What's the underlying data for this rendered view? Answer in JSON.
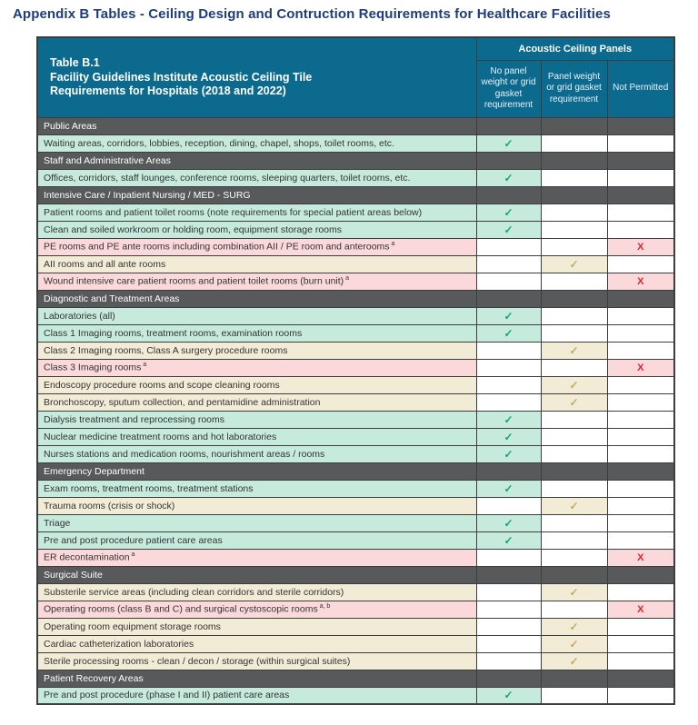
{
  "page_title": "Appendix B Tables - Ceiling Design and Contruction Requirements for Healthcare Facilities",
  "table": {
    "label": "Table B.1",
    "title_line1": "Facility Guidelines Institute Acoustic Ceiling Tile",
    "title_line2": "Requirements for Hospitals (2018 and 2022)",
    "group_header": "Acoustic Ceiling Panels",
    "columns": [
      "No panel weight or grid gasket requirement",
      "Panel weight or grid gasket requirement",
      "Not Permitted"
    ],
    "check_glyph": "✓",
    "x_glyph": "X"
  },
  "colors": {
    "title_blue": "#1e3d7c",
    "header_teal": "#0d6a8f",
    "section_gray": "#58595b",
    "green_row": "#c6eadc",
    "tan_row": "#f2ebd6",
    "pink_row": "#fbd9da",
    "check_green": "#14a57e",
    "check_tan": "#c2ab64",
    "x_red": "#e02230",
    "grid_border": "#3c3d3f"
  },
  "rows": [
    {
      "type": "section",
      "label": "Public Areas"
    },
    {
      "type": "item",
      "label": "Waiting areas, corridors, lobbies, reception, dining, chapel, shops, toilet rooms, etc.",
      "mark": "check1"
    },
    {
      "type": "section",
      "label": "Staff and Administrative Areas"
    },
    {
      "type": "item",
      "label": "Offices, corridors, staff lounges, conference rooms, sleeping quarters, toilet rooms, etc.",
      "mark": "check1"
    },
    {
      "type": "section",
      "label": "Intensive Care / Inpatient Nursing / MED - SURG"
    },
    {
      "type": "item",
      "label": "Patient rooms and patient toilet rooms (note requirements for special patient areas below)",
      "mark": "check1"
    },
    {
      "type": "item",
      "label": "Clean and soiled workroom or holding room, equipment storage rooms",
      "mark": "check1"
    },
    {
      "type": "item",
      "label": "PE rooms and PE ante rooms including combination AII / PE room and anterooms",
      "sup": "a",
      "mark": "x"
    },
    {
      "type": "item",
      "label": "AII rooms and all ante rooms",
      "mark": "check2"
    },
    {
      "type": "item",
      "label": "Wound intensive care patient rooms and patient toilet rooms (burn unit)",
      "sup": "a",
      "mark": "x"
    },
    {
      "type": "section",
      "label": "Diagnostic and Treatment Areas"
    },
    {
      "type": "item",
      "label": "Laboratories (all)",
      "mark": "check1"
    },
    {
      "type": "item",
      "label": "Class 1 Imaging rooms, treatment rooms, examination rooms",
      "mark": "check1"
    },
    {
      "type": "item",
      "label": "Class 2 Imaging rooms, Class A surgery procedure rooms",
      "mark": "check2"
    },
    {
      "type": "item",
      "label": "Class 3 Imaging rooms",
      "sup": "a",
      "mark": "x"
    },
    {
      "type": "item",
      "label": "Endoscopy procedure rooms and scope cleaning rooms",
      "mark": "check2"
    },
    {
      "type": "item",
      "label": "Bronchoscopy, sputum collection, and pentamidine administration",
      "mark": "check2"
    },
    {
      "type": "item",
      "label": "Dialysis treatment and reprocessing rooms",
      "mark": "check1"
    },
    {
      "type": "item",
      "label": "Nuclear medicine treatment rooms and hot laboratories",
      "mark": "check1"
    },
    {
      "type": "item",
      "label": "Nurses stations and medication rooms, nourishment areas / rooms",
      "mark": "check1"
    },
    {
      "type": "section",
      "label": "Emergency Department"
    },
    {
      "type": "item",
      "label": "Exam rooms, treatment rooms, treatment stations",
      "mark": "check1"
    },
    {
      "type": "item",
      "label": "Trauma rooms (crisis or shock)",
      "mark": "check2"
    },
    {
      "type": "item",
      "label": "Triage",
      "mark": "check1"
    },
    {
      "type": "item",
      "label": "Pre and post procedure patient care areas",
      "mark": "check1"
    },
    {
      "type": "item",
      "label": "ER decontamination",
      "sup": "a",
      "mark": "x"
    },
    {
      "type": "section",
      "label": "Surgical Suite"
    },
    {
      "type": "item",
      "label": "Substerile service areas (including clean corridors and sterile corridors)",
      "mark": "check2"
    },
    {
      "type": "item",
      "label": "Operating rooms (class B and C) and surgical cystoscopic rooms",
      "sup": "a, b",
      "mark": "x"
    },
    {
      "type": "item",
      "label": "Operating room equipment storage rooms",
      "mark": "check2"
    },
    {
      "type": "item",
      "label": "Cardiac catheterization laboratories",
      "mark": "check2"
    },
    {
      "type": "item",
      "label": "Sterile processing rooms - clean / decon / storage (within surgical suites)",
      "mark": "check2"
    },
    {
      "type": "section",
      "label": "Patient Recovery Areas"
    },
    {
      "type": "item",
      "label": "Pre and post procedure (phase I and II) patient care areas",
      "mark": "check1"
    }
  ]
}
